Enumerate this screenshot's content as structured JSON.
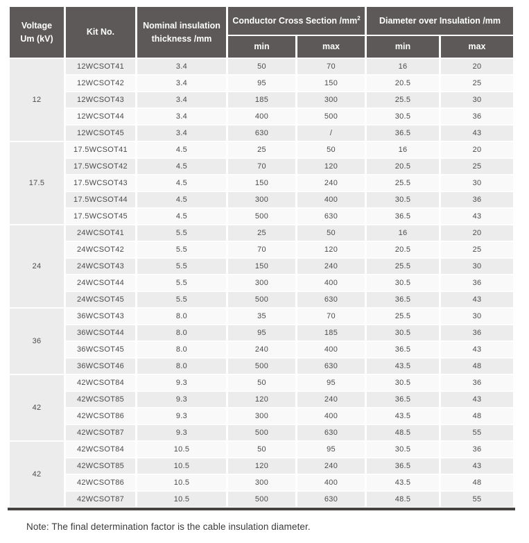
{
  "table": {
    "headers": {
      "voltage_line1": "Voltage",
      "voltage_line2": "Um (kV)",
      "kit_no": "Kit No.",
      "thickness_line1": "Nominal insulation",
      "thickness_line2": "thickness /mm",
      "ccs_label": "Conductor Cross Section /mm",
      "ccs_sup": "2",
      "doi_label": "Diameter over Insulation /mm",
      "min": "min",
      "max": "max"
    },
    "column_names": [
      "kit-no",
      "thickness",
      "ccs-min",
      "ccs-max",
      "doi-min",
      "doi-max"
    ],
    "groups": [
      {
        "voltage": "12",
        "rows": [
          [
            "12WCSOT41",
            "3.4",
            "50",
            "70",
            "16",
            "20"
          ],
          [
            "12WCSOT42",
            "3.4",
            "95",
            "150",
            "20.5",
            "25"
          ],
          [
            "12WCSOT43",
            "3.4",
            "185",
            "300",
            "25.5",
            "30"
          ],
          [
            "12WCSOT44",
            "3.4",
            "400",
            "500",
            "30.5",
            "36"
          ],
          [
            "12WCSOT45",
            "3.4",
            "630",
            "/",
            "36.5",
            "43"
          ]
        ]
      },
      {
        "voltage": "17.5",
        "rows": [
          [
            "17.5WCSOT41",
            "4.5",
            "25",
            "50",
            "16",
            "20"
          ],
          [
            "17.5WCSOT42",
            "4.5",
            "70",
            "120",
            "20.5",
            "25"
          ],
          [
            "17.5WCSOT43",
            "4.5",
            "150",
            "240",
            "25.5",
            "30"
          ],
          [
            "17.5WCSOT44",
            "4.5",
            "300",
            "400",
            "30.5",
            "36"
          ],
          [
            "17.5WCSOT45",
            "4.5",
            "500",
            "630",
            "36.5",
            "43"
          ]
        ]
      },
      {
        "voltage": "24",
        "rows": [
          [
            "24WCSOT41",
            "5.5",
            "25",
            "50",
            "16",
            "20"
          ],
          [
            "24WCSOT42",
            "5.5",
            "70",
            "120",
            "20.5",
            "25"
          ],
          [
            "24WCSOT43",
            "5.5",
            "150",
            "240",
            "25.5",
            "30"
          ],
          [
            "24WCSOT44",
            "5.5",
            "300",
            "400",
            "30.5",
            "36"
          ],
          [
            "24WCSOT45",
            "5.5",
            "500",
            "630",
            "36.5",
            "43"
          ]
        ]
      },
      {
        "voltage": "36",
        "rows": [
          [
            "36WCSOT43",
            "8.0",
            "35",
            "70",
            "25.5",
            "30"
          ],
          [
            "36WCSOT44",
            "8.0",
            "95",
            "185",
            "30.5",
            "36"
          ],
          [
            "36WCSOT45",
            "8.0",
            "240",
            "400",
            "36.5",
            "43"
          ],
          [
            "36WCSOT46",
            "8.0",
            "500",
            "630",
            "43.5",
            "48"
          ]
        ]
      },
      {
        "voltage": "42",
        "rows": [
          [
            "42WCSOT84",
            "9.3",
            "50",
            "95",
            "30.5",
            "36"
          ],
          [
            "42WCSOT85",
            "9.3",
            "120",
            "240",
            "36.5",
            "43"
          ],
          [
            "42WCSOT86",
            "9.3",
            "300",
            "400",
            "43.5",
            "48"
          ],
          [
            "42WCSOT87",
            "9.3",
            "500",
            "630",
            "48.5",
            "55"
          ]
        ]
      },
      {
        "voltage": "42",
        "rows": [
          [
            "42WCSOT84",
            "10.5",
            "50",
            "95",
            "30.5",
            "36"
          ],
          [
            "42WCSOT85",
            "10.5",
            "120",
            "240",
            "36.5",
            "43"
          ],
          [
            "42WCSOT86",
            "10.5",
            "300",
            "400",
            "43.5",
            "48"
          ],
          [
            "42WCSOT87",
            "10.5",
            "500",
            "630",
            "48.5",
            "55"
          ]
        ]
      }
    ]
  },
  "colors": {
    "header_bg": "#5c5958",
    "header_text": "#ffffff",
    "row_dark": "#ececec",
    "row_light": "#f9f9f9",
    "bottom_border": "#454242",
    "body_text": "#4b4b4b"
  },
  "note": "Note: The final determination factor is the cable insulation diameter."
}
